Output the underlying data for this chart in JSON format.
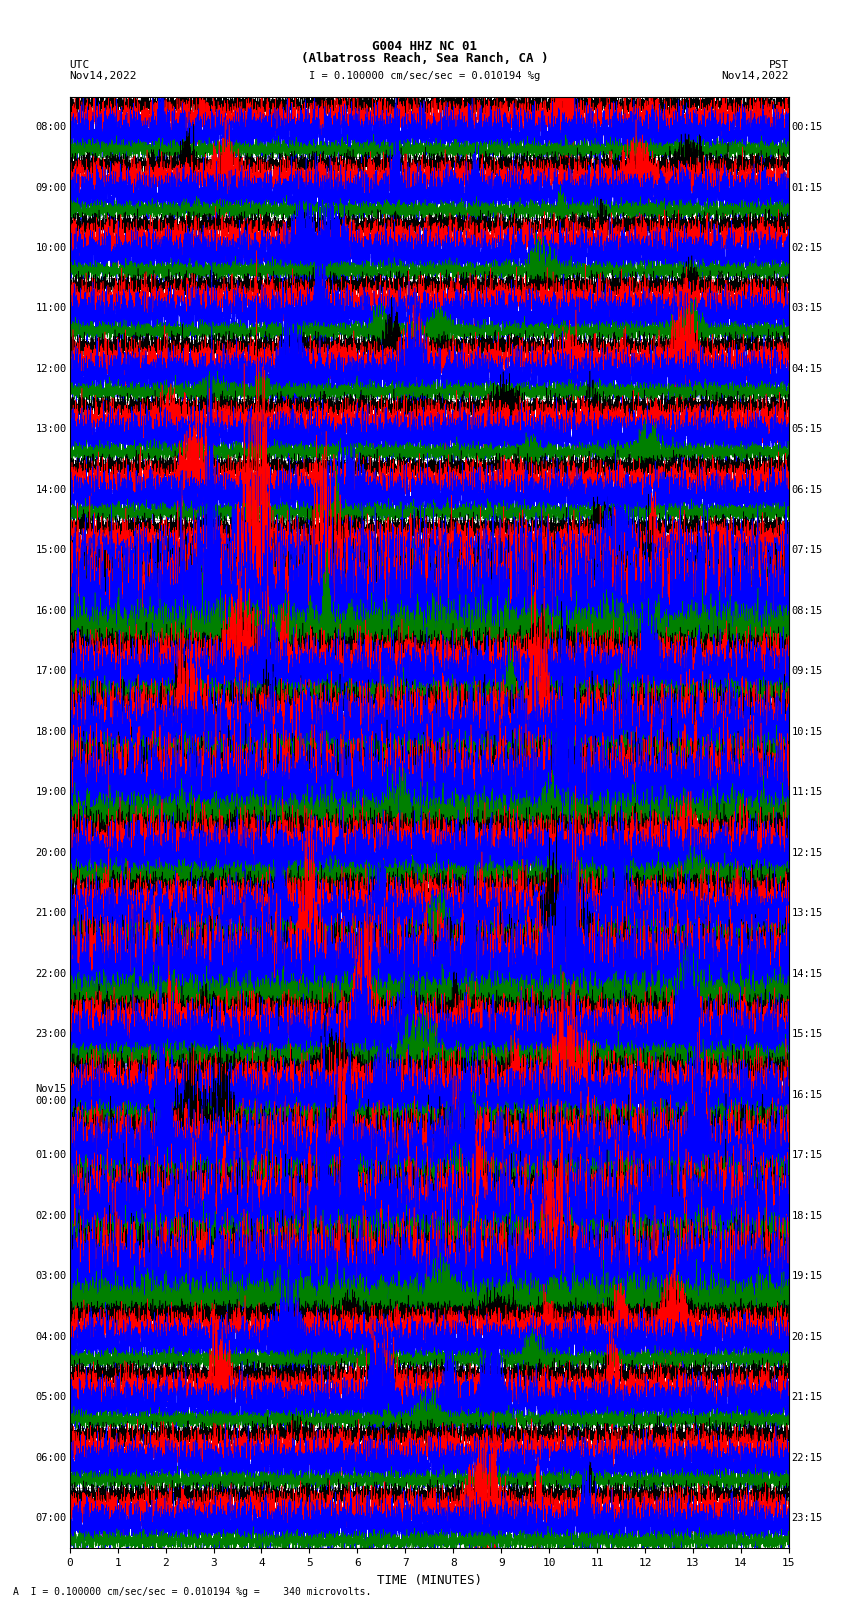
{
  "title_line1": "G004 HHZ NC 01",
  "title_line2": "(Albatross Reach, Sea Ranch, CA )",
  "scale_label": "I = 0.100000 cm/sec/sec = 0.010194 %g",
  "utc_label": "UTC",
  "pst_label": "PST",
  "date_left": "Nov14,2022",
  "date_right": "Nov14,2022",
  "xlabel": "TIME (MINUTES)",
  "footer": "A  I = 0.100000 cm/sec/sec = 0.010194 %g =    340 microvolts.",
  "xmin": 0,
  "xmax": 15,
  "xticks": [
    0,
    1,
    2,
    3,
    4,
    5,
    6,
    7,
    8,
    9,
    10,
    11,
    12,
    13,
    14,
    15
  ],
  "num_rows": 24,
  "traces_per_row": 4,
  "colors": [
    "black",
    "red",
    "blue",
    "green"
  ],
  "row_labels_left": [
    "08:00",
    "09:00",
    "10:00",
    "11:00",
    "12:00",
    "13:00",
    "14:00",
    "15:00",
    "16:00",
    "17:00",
    "18:00",
    "19:00",
    "20:00",
    "21:00",
    "22:00",
    "23:00",
    "Nov15\n00:00",
    "01:00",
    "02:00",
    "03:00",
    "04:00",
    "05:00",
    "06:00",
    "07:00"
  ],
  "row_labels_right": [
    "00:15",
    "01:15",
    "02:15",
    "03:15",
    "04:15",
    "05:15",
    "06:15",
    "07:15",
    "08:15",
    "09:15",
    "10:15",
    "11:15",
    "12:15",
    "13:15",
    "14:15",
    "15:15",
    "16:15",
    "17:15",
    "18:15",
    "19:15",
    "20:15",
    "21:15",
    "22:15",
    "23:15"
  ],
  "bg_color": "white",
  "trace_linewidth": 0.4,
  "amplitude_base": 0.32
}
